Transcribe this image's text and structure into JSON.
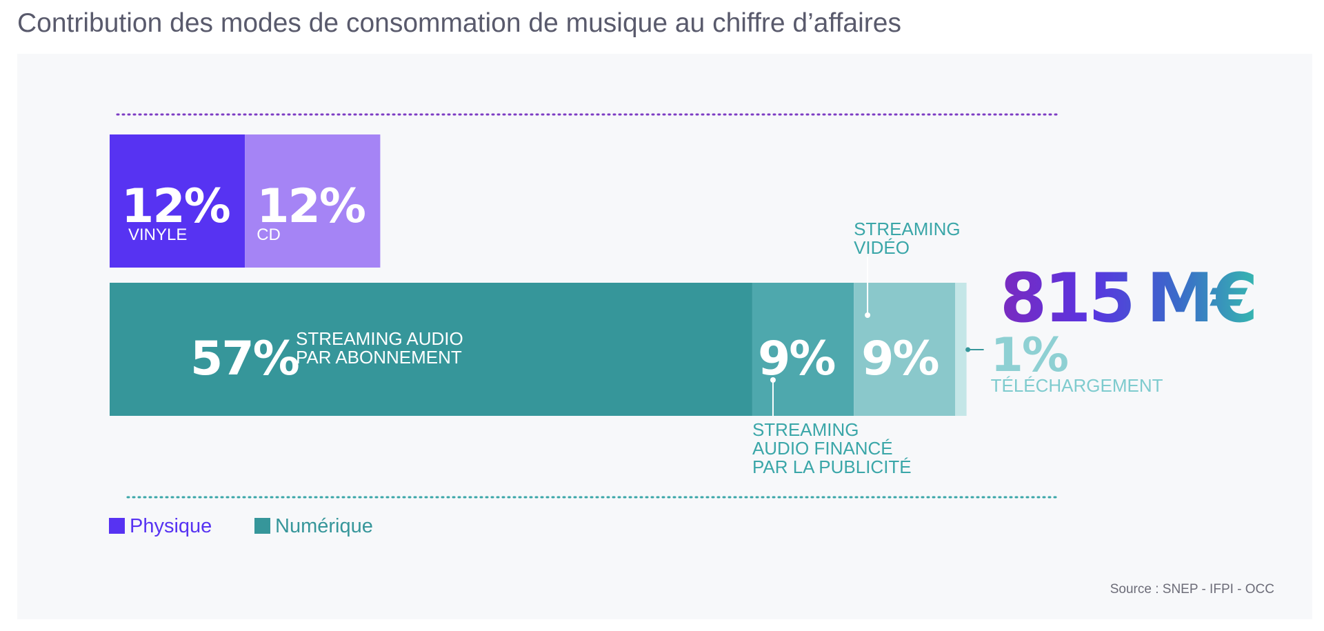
{
  "title": "Contribution des modes de consommation de musique au chiffre d’affaires",
  "total": {
    "value": "815",
    "unit": "M€"
  },
  "source": "Source : SNEP - IFPI - OCC",
  "colors": {
    "physique": "#5733f2",
    "cd": "#a584f5",
    "numerique": "#36969a",
    "streaming_pub": "#4ea8ad",
    "streaming_video": "#8ac8cb",
    "telechargement": "#c4e6e7",
    "callout_text": "#3aa6a8"
  },
  "legend": [
    {
      "label": "Physique",
      "color": "#5733f2"
    },
    {
      "label": "Numérique",
      "color": "#36969a"
    }
  ],
  "chart_data": {
    "type": "bar",
    "orientation": "horizontal-stacked",
    "unit": "%",
    "groups": [
      {
        "name": "Physique",
        "segments": [
          {
            "label": "VINYLE",
            "value": 12,
            "display": "12%"
          },
          {
            "label": "CD",
            "value": 12,
            "display": "12%"
          }
        ]
      },
      {
        "name": "Numérique",
        "segments": [
          {
            "label": "STREAMING AUDIO PAR ABONNEMENT",
            "lines": [
              "STREAMING AUDIO",
              "PAR ABONNEMENT"
            ],
            "value": 57,
            "display": "57%"
          },
          {
            "label": "STREAMING AUDIO FINANCÉ PAR LA PUBLICITÉ",
            "lines": [
              "STREAMING",
              "AUDIO FINANCÉ",
              "PAR LA PUBLICITÉ"
            ],
            "value": 9,
            "display": "9%"
          },
          {
            "label": "STREAMING VIDÉO",
            "lines": [
              "STREAMING",
              "VIDÉO"
            ],
            "value": 9,
            "display": "9%"
          },
          {
            "label": "TÉLÉCHARGEMENT",
            "lines": [
              "TÉLÉCHARGEMENT"
            ],
            "value": 1,
            "display": "1%"
          }
        ]
      }
    ]
  }
}
